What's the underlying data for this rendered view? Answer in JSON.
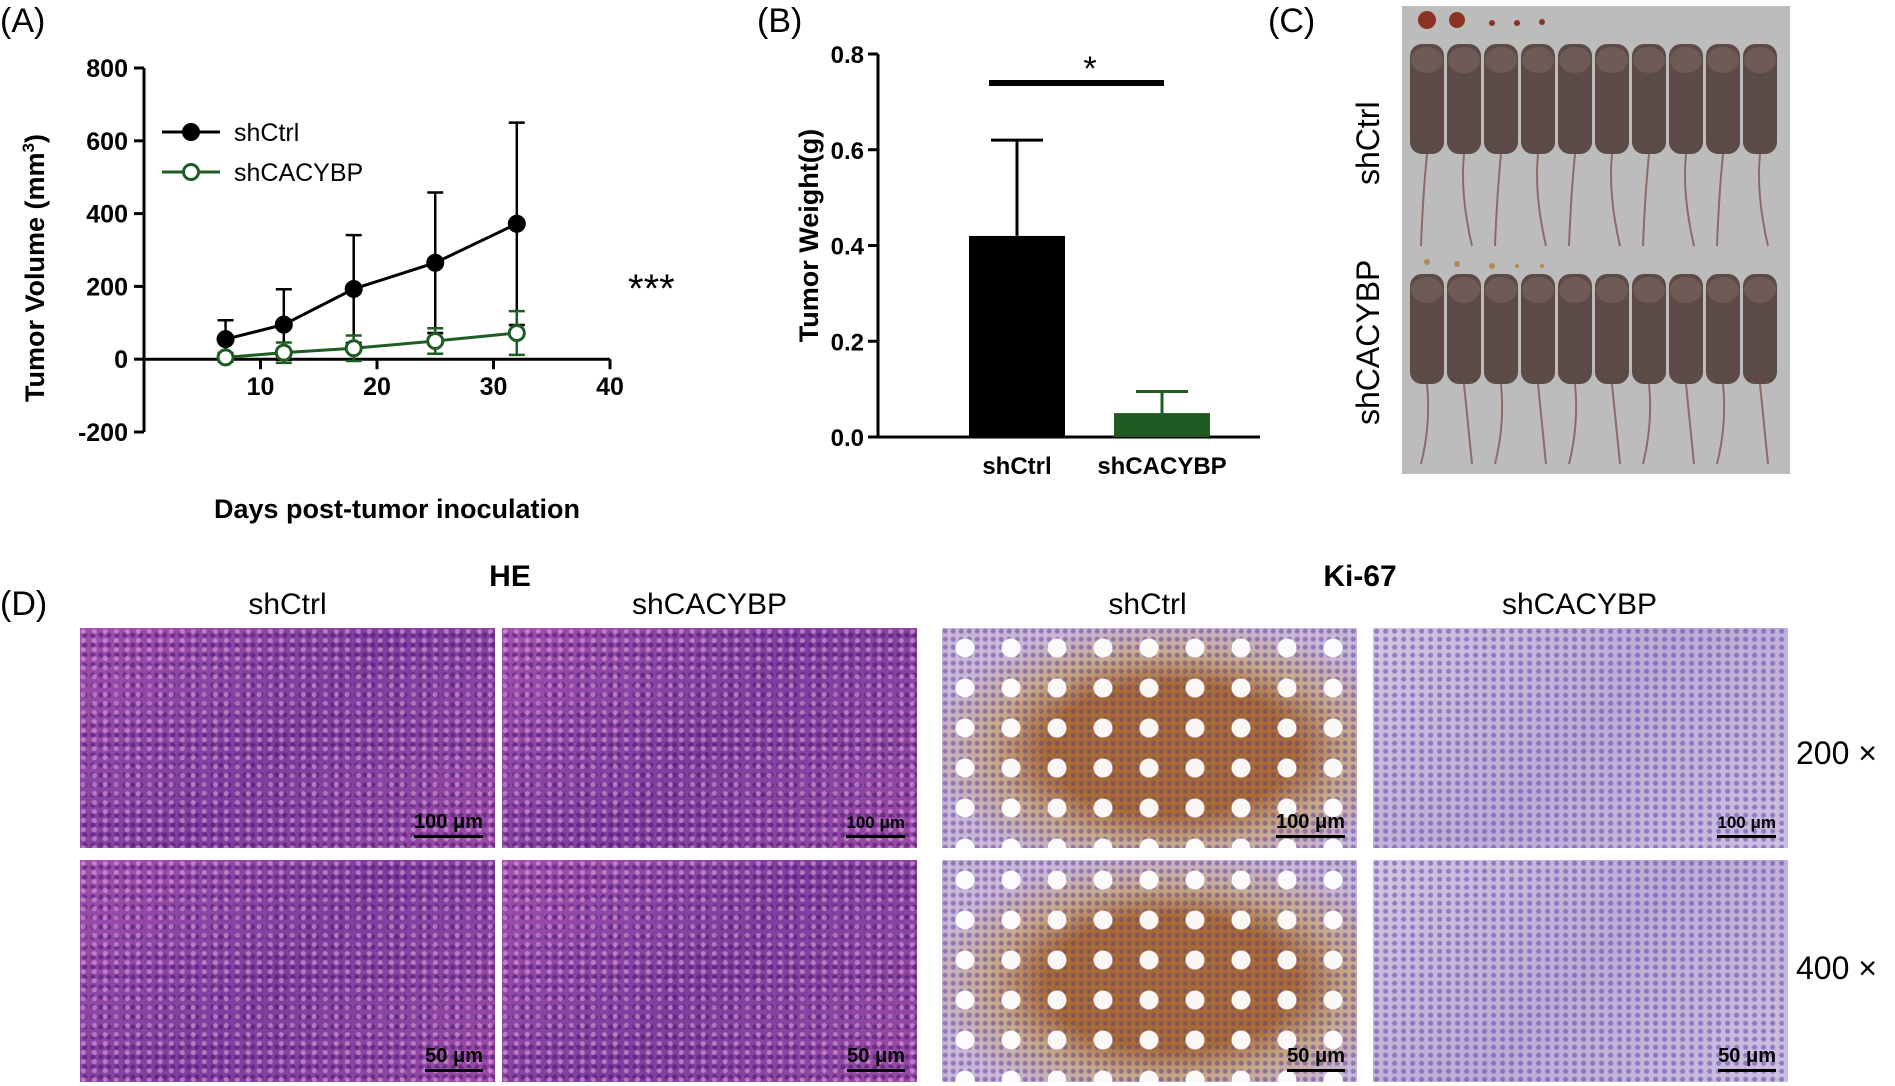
{
  "panels": {
    "a": "(A)",
    "b": "(B)",
    "c": "(C)",
    "d": "(D)"
  },
  "colors": {
    "shCtrl": "#000000",
    "shCACYBP": "#1e5c23",
    "he_bg": "#9a4aa6",
    "ki_bg": "#c9b6d9",
    "brown": "#a86b33",
    "photo_bg": "#bdbdbd"
  },
  "chart_data": [
    {
      "id": "A",
      "type": "line",
      "ylabel": "Tumor Volume (mm³)",
      "xlabel": "Days post-tumor inoculation",
      "xlim": [
        0,
        40
      ],
      "ylim": [
        -200,
        800
      ],
      "xticks": [
        10,
        20,
        30,
        40
      ],
      "yticks": [
        -200,
        0,
        200,
        400,
        600,
        800
      ],
      "legend_position": "top-left",
      "annotation": "***",
      "series": [
        {
          "name": "shCtrl",
          "color": "#000000",
          "marker": "filled-circle",
          "x": [
            7,
            12,
            18,
            25,
            32
          ],
          "y": [
            55,
            95,
            193,
            265,
            372
          ],
          "err": [
            52,
            97,
            148,
            193,
            278
          ]
        },
        {
          "name": "shCACYBP",
          "color": "#1e5c23",
          "marker": "open-circle",
          "x": [
            7,
            12,
            18,
            25,
            32
          ],
          "y": [
            5,
            18,
            30,
            50,
            72
          ],
          "err": [
            12,
            28,
            35,
            35,
            60
          ]
        }
      ]
    },
    {
      "id": "B",
      "type": "bar",
      "ylabel": "Tumor Weight(g)",
      "categories": [
        "shCtrl",
        "shCACYBP"
      ],
      "values": [
        0.42,
        0.05
      ],
      "err": [
        0.2,
        0.045
      ],
      "colors": [
        "#000000",
        "#1e5c23"
      ],
      "ylim": [
        0,
        0.8
      ],
      "yticks": [
        "0.0",
        "0.2",
        "0.4",
        "0.6",
        "0.8"
      ],
      "significance": "*"
    }
  ],
  "photo": {
    "labels": [
      "shCtrl",
      "shCACYBP"
    ]
  },
  "histology": {
    "groups": [
      "HE",
      "Ki-67"
    ],
    "columns": [
      "shCtrl",
      "shCACYBP",
      "shCtrl",
      "shCACYBP"
    ],
    "magnifications": [
      "200 ×",
      "400 ×"
    ],
    "scalebars": {
      "row1": [
        "100 μm",
        "100 μm",
        "100 μm",
        "100 μm"
      ],
      "row2": [
        "50 μm",
        "50 μm",
        "50 μm",
        "50 μm"
      ]
    }
  }
}
